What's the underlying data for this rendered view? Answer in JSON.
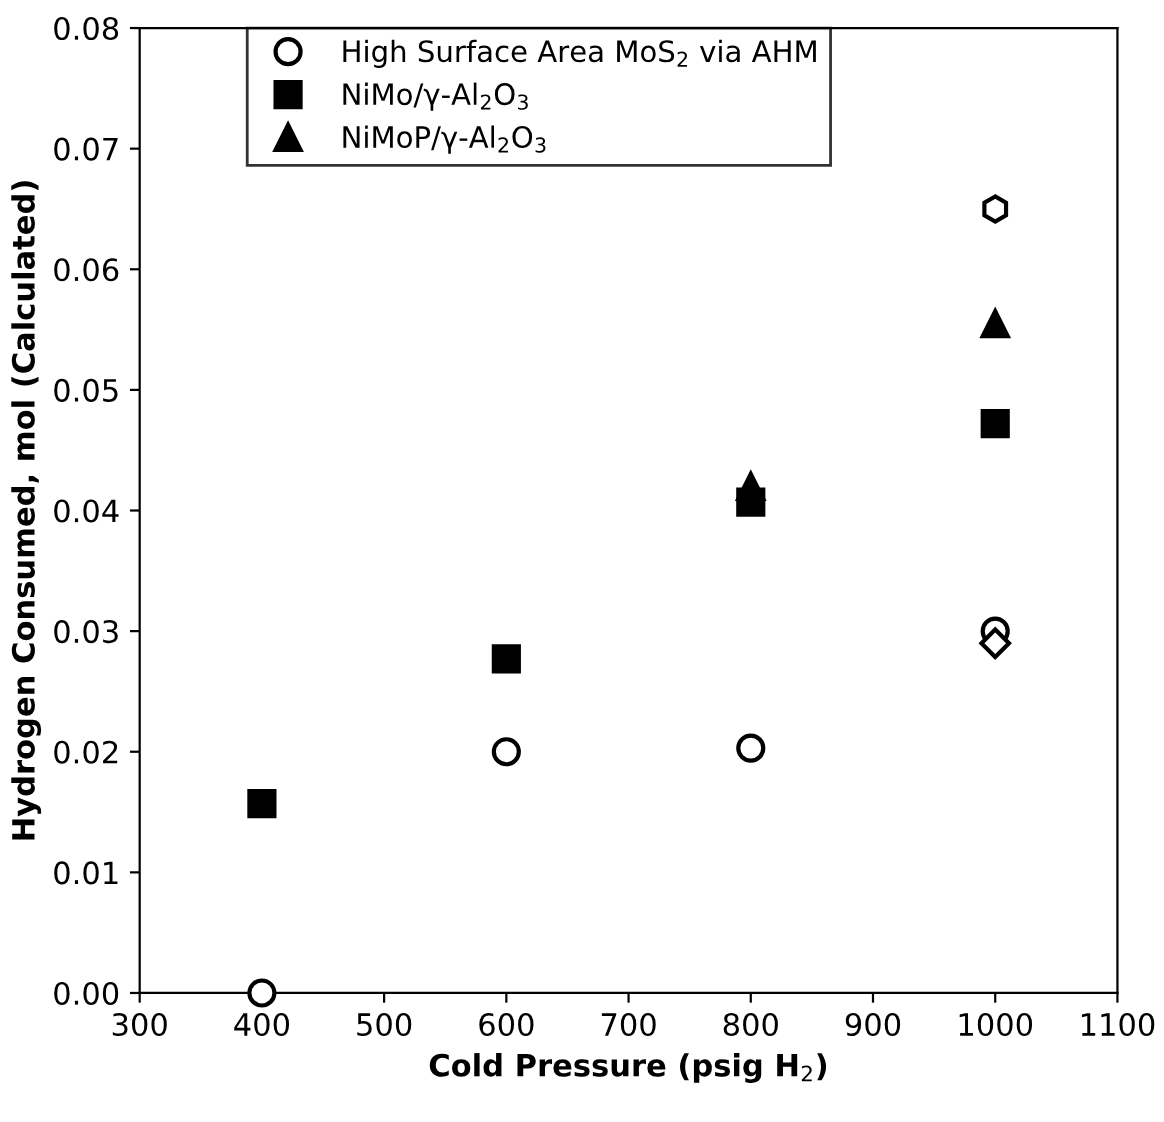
{
  "chart_data": {
    "type": "scatter",
    "xlabel": "Cold Pressure (psig H$_{2}$)",
    "ylabel": "Hydrogen Consumed, mol (Calculated)",
    "x": [
      400,
      600,
      800,
      1000
    ],
    "series": [
      {
        "name": "High Surface Area MoS$_{2}$ via AHM",
        "color": "#000000",
        "marker": "circle",
        "values": [
          0.0,
          0.02,
          0.0203,
          0.03
        ]
      },
      {
        "color": "#000000",
        "values": [
          null,
          null,
          null,
          0.065
        ]
      },
      {
        "color": "#000000",
        "marker": "diamond",
        "values": [
          null,
          null,
          null,
          0.029
        ]
      },
      {
        "name": "NiMo/γ-Al$_{2}$O$_{3}$",
        "color": "#000000",
        "marker": "square",
        "values": [
          0.0157,
          0.0277,
          0.0407,
          0.0472
        ]
      },
      {
        "name": "NiMoP/γ-Al$_{2}$O$_{3}$",
        "color": "#000000",
        "marker": "triangle",
        "values": [
          null,
          null,
          0.042,
          0.0555
        ]
      }
    ],
    "xlim": [
      300,
      1100
    ],
    "xticks": [
      300,
      400,
      500,
      600,
      700,
      800,
      900,
      1000,
      1100
    ],
    "ylim": [
      0,
      0.08
    ],
    "yticks": [
      {
        "value": 0,
        "label": "0.00"
      },
      {
        "value": 0.01,
        "label": "0.01"
      },
      {
        "value": 0.02,
        "label": "0.02"
      },
      {
        "value": 0.03,
        "label": "0.03"
      },
      {
        "value": 0.04,
        "label": "0.04"
      },
      {
        "value": 0.05,
        "label": "0.05"
      },
      {
        "value": 0.06,
        "label": "0.06"
      },
      {
        "value": 0.07,
        "label": "0.07"
      },
      {
        "value": 0.08,
        "label": "0.08"
      }
    ],
    "grid": false,
    "legend": "top left"
  }
}
